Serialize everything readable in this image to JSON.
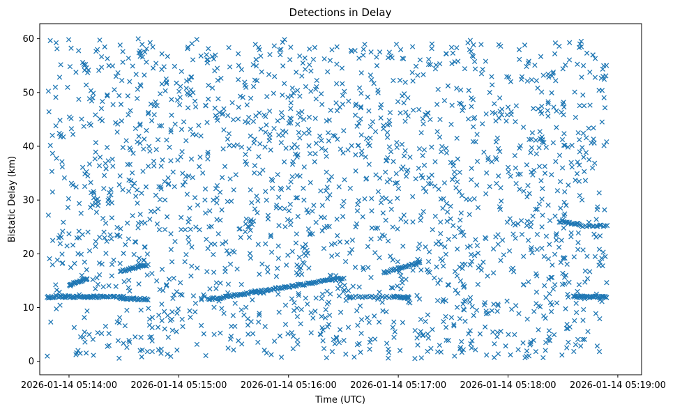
{
  "chart_data": {
    "type": "scatter",
    "title": "Detections in Delay",
    "xlabel": "Time (UTC)",
    "ylabel": "Bistatic Delay (km)",
    "marker": "x",
    "color": "#1f77b4",
    "ylim": [
      -2.5,
      62.8
    ],
    "xlim_seconds": [
      -16,
      313
    ],
    "x_ticks": [
      {
        "seconds": 0,
        "label": "2026-01-14 05:14:00"
      },
      {
        "seconds": 60,
        "label": "2026-01-14 05:15:00"
      },
      {
        "seconds": 120,
        "label": "2026-01-14 05:16:00"
      },
      {
        "seconds": 180,
        "label": "2026-01-14 05:17:00"
      },
      {
        "seconds": 240,
        "label": "2026-01-14 05:18:00"
      },
      {
        "seconds": 300,
        "label": "2026-01-14 05:19:00"
      }
    ],
    "y_ticks": [
      {
        "value": 0,
        "label": "0"
      },
      {
        "value": 10,
        "label": "10"
      },
      {
        "value": 20,
        "label": "20"
      },
      {
        "value": 30,
        "label": "30"
      },
      {
        "value": 40,
        "label": "40"
      },
      {
        "value": 50,
        "label": "50"
      },
      {
        "value": 60,
        "label": "60"
      }
    ],
    "data_range_seconds": [
      -12,
      294
    ],
    "data_range_km": [
      0.5,
      60
    ],
    "clutter_points": 1900,
    "tracks": [
      {
        "t_start": -12,
        "t_end": 10,
        "delay_start": 12.0,
        "delay_end": 12.0,
        "count": 40
      },
      {
        "t_start": 0,
        "t_end": 10,
        "delay_start": 14.2,
        "delay_end": 15.3,
        "count": 22
      },
      {
        "t_start": 10,
        "t_end": 30,
        "delay_start": 12.0,
        "delay_end": 12.0,
        "count": 30
      },
      {
        "t_start": 28,
        "t_end": 43,
        "delay_start": 11.8,
        "delay_end": 11.5,
        "count": 28
      },
      {
        "t_start": 28,
        "t_end": 43,
        "delay_start": 16.8,
        "delay_end": 17.9,
        "count": 26
      },
      {
        "t_start": 76,
        "t_end": 150,
        "delay_start": 11.5,
        "delay_end": 15.5,
        "count": 110
      },
      {
        "t_start": 152,
        "t_end": 180,
        "delay_start": 12.0,
        "delay_end": 12.0,
        "count": 24
      },
      {
        "t_start": 172,
        "t_end": 192,
        "delay_start": 16.5,
        "delay_end": 18.4,
        "count": 30
      },
      {
        "t_start": 180,
        "t_end": 186,
        "delay_start": 12.0,
        "delay_end": 11.8,
        "count": 14
      },
      {
        "t_start": 268,
        "t_end": 279,
        "delay_start": 26.0,
        "delay_end": 25.5,
        "count": 20
      },
      {
        "t_start": 276,
        "t_end": 294,
        "delay_start": 12.0,
        "delay_end": 12.0,
        "count": 36
      },
      {
        "t_start": 279,
        "t_end": 294,
        "delay_start": 25.2,
        "delay_end": 25.2,
        "count": 16
      }
    ]
  }
}
